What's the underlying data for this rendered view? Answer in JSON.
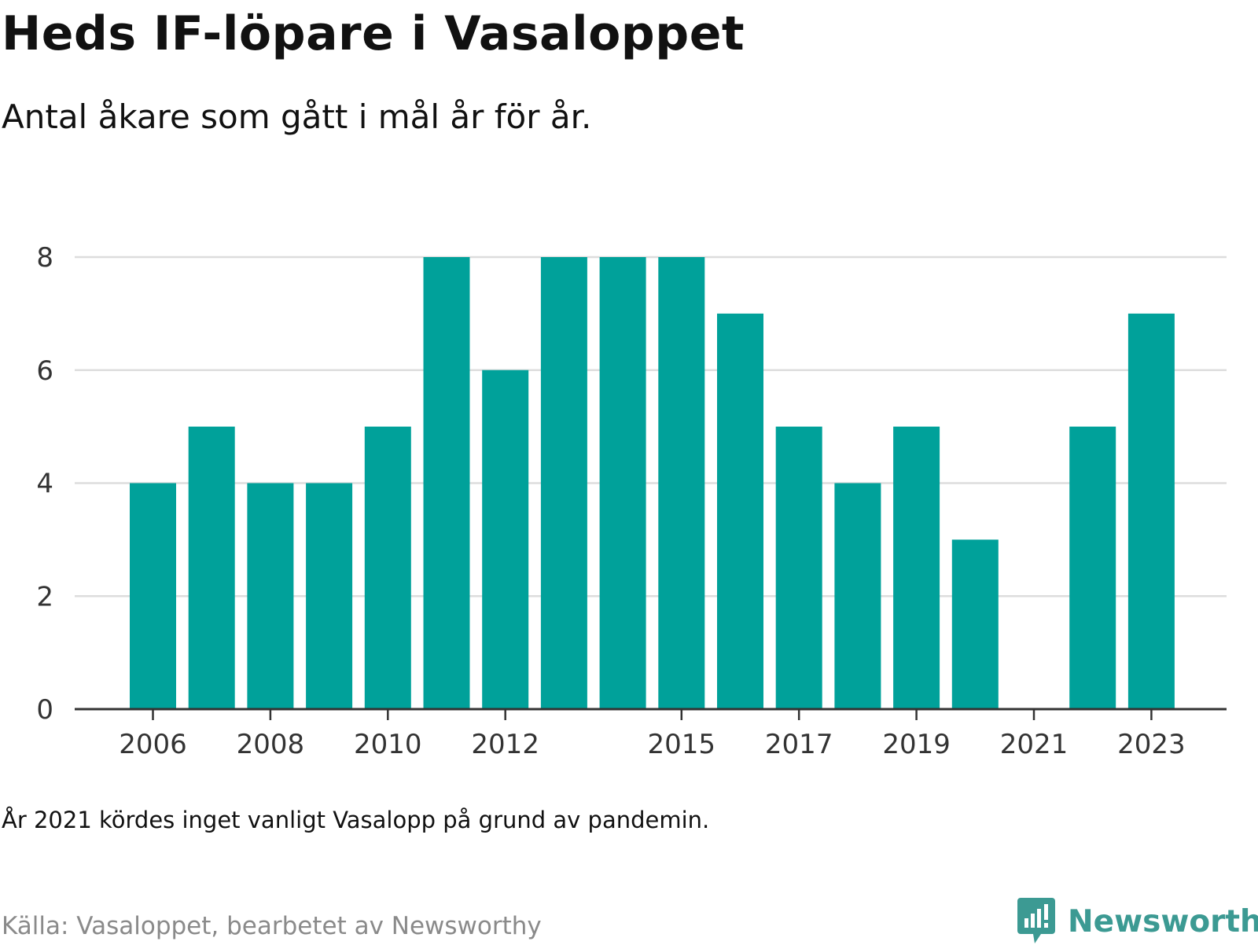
{
  "header": {
    "title": "Heds IF-löpare i Vasaloppet",
    "subtitle": "Antal åkare som gått i mål år för år."
  },
  "footer": {
    "note": "År 2021 kördes inget vanligt Vasalopp på grund av pandemin.",
    "source": "Källa: Vasaloppet, bearbetet av Newsworthy",
    "brand": "Newsworthy",
    "brand_icon": "newsworthy-logo-icon",
    "brand_color": "#3c9a93"
  },
  "colors": {
    "bar": "#00a19a",
    "grid": "#dddddd",
    "axis": "#333333"
  },
  "chart_data": {
    "type": "bar",
    "categories": [
      "2006",
      "2007",
      "2008",
      "2009",
      "2010",
      "2011",
      "2012",
      "2013",
      "2014",
      "2015",
      "2016",
      "2017",
      "2018",
      "2019",
      "2020",
      "2021",
      "2022",
      "2023"
    ],
    "values": [
      4,
      5,
      4,
      4,
      5,
      8,
      6,
      8,
      8,
      8,
      7,
      5,
      4,
      5,
      3,
      0,
      5,
      7
    ],
    "x_tick_labels": [
      "2006",
      "2008",
      "2010",
      "2012",
      "2015",
      "2017",
      "2019",
      "2021",
      "2023"
    ],
    "y_ticks": [
      "0",
      "2",
      "4",
      "6",
      "8"
    ],
    "ylim": [
      0,
      8
    ],
    "grid": true,
    "legend": "none"
  }
}
